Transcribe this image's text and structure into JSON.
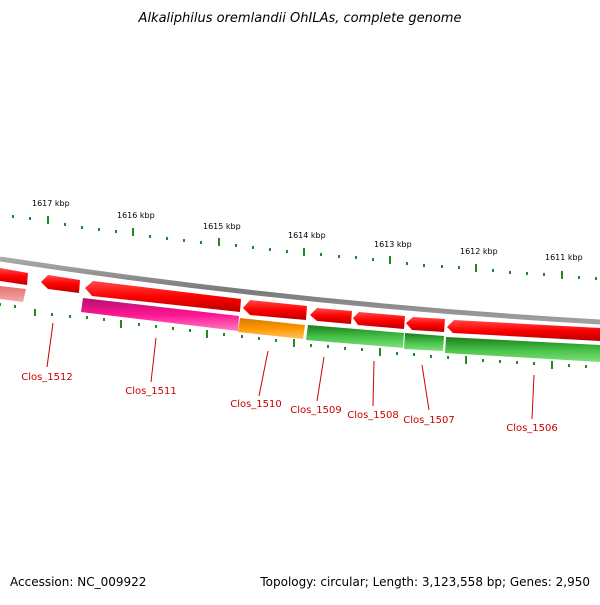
{
  "title": "Alkaliphilus oremlandii OhILAs, complete genome",
  "footer": {
    "accession": "Accession: NC_009922",
    "summary": "Topology: circular; Length: 3,123,558 bp; Genes: 2,950"
  },
  "scale": {
    "labels": [
      "1617 kbp",
      "1616 kbp",
      "1615 kbp",
      "1614 kbp",
      "1613 kbp",
      "1612 kbp",
      "1611 kbp"
    ]
  },
  "genes": [
    {
      "label": "Clos_1512",
      "track": "forward-red",
      "color": "#ff0000"
    },
    {
      "label": "Clos_1511",
      "track": "reverse-magenta",
      "color": "#ff1493"
    },
    {
      "label": "Clos_1510",
      "track": "reverse-orange",
      "color": "#ff9900"
    },
    {
      "label": "Clos_1509",
      "track": "reverse-green",
      "color": "#33aa33"
    },
    {
      "label": "Clos_1508",
      "track": "reverse-green",
      "color": "#33aa33"
    },
    {
      "label": "Clos_1507",
      "track": "reverse-green",
      "color": "#33aa33"
    },
    {
      "label": "Clos_1506",
      "track": "reverse-green",
      "color": "#33aa33"
    }
  ],
  "colors": {
    "forward_cds": "#ff0000",
    "reverse_cds": "#33aa33",
    "backbone": "#888888",
    "ticks": "#228822",
    "label": "#cc0000"
  }
}
